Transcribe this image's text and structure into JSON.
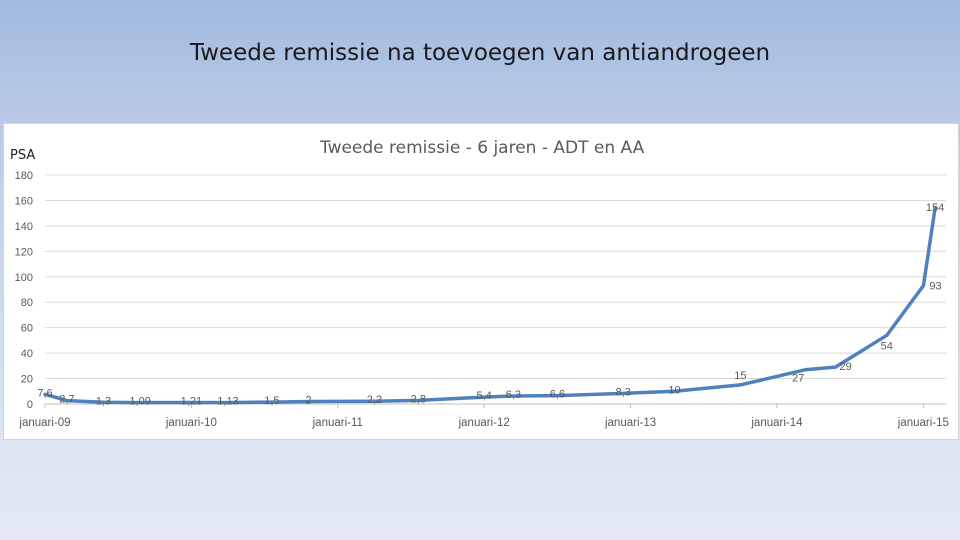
{
  "slide": {
    "title": "Tweede remissie na toevoegen van antiandrogeen"
  },
  "chart_data": {
    "type": "line",
    "title": "Tweede remissie - 6 jaren - ADT en AA",
    "ylabel": "PSA",
    "xlabel": "",
    "ylim": [
      0,
      180
    ],
    "yticks": [
      0,
      20,
      40,
      60,
      80,
      100,
      120,
      140,
      160,
      180
    ],
    "grid": true,
    "legend": "none",
    "color": "#4f81bd",
    "x_tick_labels": [
      "januari-09",
      "januari-10",
      "januari-11",
      "januari-12",
      "januari-13",
      "januari-14",
      "januari-15"
    ],
    "x_tick_positions": [
      2009,
      2010,
      2011,
      2012,
      2013,
      2014,
      2015
    ],
    "series": [
      {
        "points": [
          {
            "x": 2009.0,
            "y": 7.6,
            "label": "7,6"
          },
          {
            "x": 2009.15,
            "y": 2.7,
            "label": "2,7"
          },
          {
            "x": 2009.4,
            "y": 1.3,
            "label": "1,3"
          },
          {
            "x": 2009.65,
            "y": 1.09,
            "label": "1,09"
          },
          {
            "x": 2010.0,
            "y": 1.21,
            "label": "1,21"
          },
          {
            "x": 2010.25,
            "y": 1.13,
            "label": "1,13"
          },
          {
            "x": 2010.55,
            "y": 1.5,
            "label": "1,5"
          },
          {
            "x": 2010.8,
            "y": 2,
            "label": "2"
          },
          {
            "x": 2011.25,
            "y": 2.2,
            "label": "2,2"
          },
          {
            "x": 2011.55,
            "y": 2.8,
            "label": "2,8"
          },
          {
            "x": 2012.0,
            "y": 5.4,
            "label": "5,4"
          },
          {
            "x": 2012.2,
            "y": 6.3,
            "label": "6,3"
          },
          {
            "x": 2012.5,
            "y": 6.6,
            "label": "6,6"
          },
          {
            "x": 2012.95,
            "y": 8.3,
            "label": "8,3"
          },
          {
            "x": 2013.3,
            "y": 10,
            "label": "10"
          },
          {
            "x": 2013.75,
            "y": 15,
            "label": "15"
          },
          {
            "x": 2014.2,
            "y": 27,
            "label": "27"
          },
          {
            "x": 2014.4,
            "y": 29,
            "label": "29"
          },
          {
            "x": 2014.75,
            "y": 54,
            "label": "54"
          },
          {
            "x": 2015.0,
            "y": 93,
            "label": "93"
          },
          {
            "x": 2015.08,
            "y": 154,
            "label": "154"
          }
        ]
      }
    ]
  }
}
